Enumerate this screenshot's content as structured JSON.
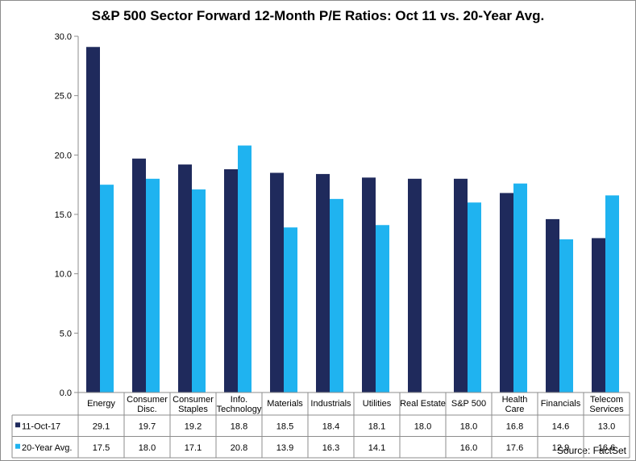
{
  "title": "S&P 500 Sector Forward 12-Month P/E Ratios: Oct 11 vs. 20-Year Avg.",
  "source": "Source: FactSet",
  "chart_data": {
    "type": "bar",
    "title": "S&P 500 Sector Forward 12-Month P/E Ratios: Oct 11 vs. 20-Year Avg.",
    "xlabel": "",
    "ylabel": "",
    "ylim": [
      0,
      30
    ],
    "yticks": [
      "0.0",
      "5.0",
      "10.0",
      "15.0",
      "20.0",
      "25.0",
      "30.0"
    ],
    "grid": false,
    "legend": "data-table",
    "categories": [
      [
        "Energy"
      ],
      [
        "Consumer",
        "Disc."
      ],
      [
        "Consumer",
        "Staples"
      ],
      [
        "Info.",
        "Technology"
      ],
      [
        "Materials"
      ],
      [
        "Industrials"
      ],
      [
        "Utilities"
      ],
      [
        "Real Estate"
      ],
      [
        "S&P 500"
      ],
      [
        "Health",
        "Care"
      ],
      [
        "Financials"
      ],
      [
        "Telecom",
        "Services"
      ]
    ],
    "series": [
      {
        "name": "11-Oct-17",
        "color": "#1f2a5c",
        "values": [
          29.1,
          19.7,
          19.2,
          18.8,
          18.5,
          18.4,
          18.1,
          18.0,
          18.0,
          16.8,
          14.6,
          13.0
        ],
        "labels": [
          "29.1",
          "19.7",
          "19.2",
          "18.8",
          "18.5",
          "18.4",
          "18.1",
          "18.0",
          "18.0",
          "16.8",
          "14.6",
          "13.0"
        ]
      },
      {
        "name": "20-Year Avg.",
        "color": "#1fb3f0",
        "values": [
          17.5,
          18.0,
          17.1,
          20.8,
          13.9,
          16.3,
          14.1,
          null,
          16.0,
          17.6,
          12.9,
          16.6
        ],
        "labels": [
          "17.5",
          "18.0",
          "17.1",
          "20.8",
          "13.9",
          "16.3",
          "14.1",
          "",
          "16.0",
          "17.6",
          "12.9",
          "16.6"
        ]
      }
    ]
  }
}
